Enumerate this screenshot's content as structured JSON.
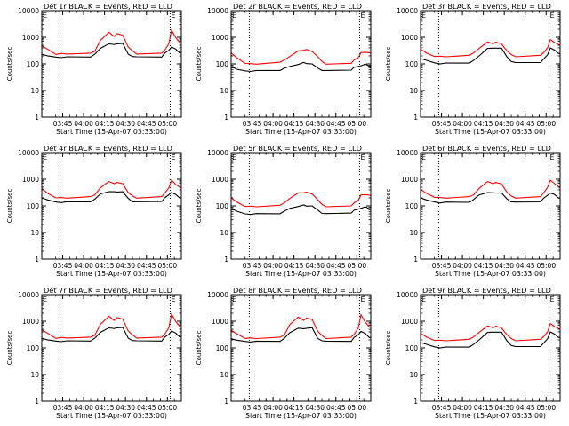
{
  "figure": {
    "xlabel": "Start Time (15-Apr-07 03:33:00)",
    "ylabel": "Counts/sec",
    "xticks": [
      "03:45",
      "04:00",
      "04:15",
      "04:30",
      "04:45",
      "05:00"
    ],
    "yticks": [
      "1",
      "10",
      "100",
      "1000",
      "10000"
    ],
    "corner_labels": {
      "left": "E",
      "right": "E"
    },
    "colors": {
      "events": "#000000",
      "lld": "#ff0000",
      "axes": "#000000",
      "background": "#ffffff"
    }
  },
  "chart_data": [
    {
      "type": "line",
      "title": "Det 1r BLACK = Events, RED = LLD",
      "xlabel": "Start Time (15-Apr-07 03:33:00)",
      "ylabel": "Counts/sec",
      "xlim": [
        0,
        100
      ],
      "ylim": [
        1,
        10000
      ],
      "yscale": "log",
      "day_night_markers": [
        13,
        92
      ],
      "x": [
        0,
        4,
        10,
        14,
        18,
        35,
        38,
        42,
        48,
        52,
        54,
        58,
        62,
        65,
        68,
        86,
        88,
        91,
        93,
        96,
        99,
        100
      ],
      "series": [
        {
          "name": "LLD",
          "color": "#ff0000",
          "values": [
            480,
            360,
            240,
            240,
            240,
            240,
            300,
            800,
            1500,
            1100,
            1300,
            1200,
            450,
            300,
            240,
            240,
            320,
            600,
            1800,
            1000,
            600,
            600
          ]
        },
        {
          "name": "Events",
          "color": "#000000",
          "values": [
            230,
            190,
            180,
            180,
            180,
            185,
            220,
            380,
            600,
            520,
            580,
            560,
            230,
            200,
            180,
            185,
            240,
            320,
            450,
            350,
            260,
            260
          ]
        }
      ]
    },
    {
      "type": "line",
      "title": "Det 2r BLACK = Events, RED = LLD",
      "xlabel": "Start Time (15-Apr-07 03:33:00)",
      "ylabel": "Counts/sec",
      "xlim": [
        0,
        100
      ],
      "ylim": [
        1,
        10000
      ],
      "yscale": "log",
      "day_night_markers": [
        13,
        92
      ],
      "x": [
        0,
        4,
        10,
        14,
        18,
        35,
        38,
        42,
        48,
        52,
        54,
        58,
        62,
        65,
        68,
        86,
        88,
        91,
        93,
        96,
        99,
        100
      ],
      "series": [
        {
          "name": "LLD",
          "color": "#ff0000",
          "values": [
            260,
            170,
            110,
            100,
            100,
            110,
            140,
            200,
            300,
            330,
            330,
            290,
            200,
            120,
            100,
            100,
            140,
            180,
            260,
            280,
            250,
            250
          ]
        },
        {
          "name": "Events",
          "color": "#000000",
          "values": [
            80,
            60,
            55,
            55,
            55,
            58,
            65,
            80,
            100,
            110,
            105,
            95,
            70,
            60,
            55,
            60,
            70,
            80,
            90,
            95,
            85,
            85
          ]
        }
      ]
    },
    {
      "type": "line",
      "title": "Det 3r BLACK = Events, RED = LLD",
      "xlabel": "Start Time (15-Apr-07 03:33:00)",
      "ylabel": "Counts/sec",
      "xlim": [
        0,
        100
      ],
      "ylim": [
        1,
        10000
      ],
      "yscale": "log",
      "day_night_markers": [
        13,
        92
      ],
      "x": [
        0,
        4,
        10,
        14,
        18,
        35,
        38,
        42,
        48,
        52,
        54,
        58,
        62,
        65,
        68,
        86,
        88,
        91,
        93,
        96,
        99,
        100
      ],
      "series": [
        {
          "name": "LLD",
          "color": "#ff0000",
          "values": [
            360,
            260,
            200,
            190,
            190,
            200,
            260,
            400,
            650,
            580,
            620,
            560,
            320,
            220,
            190,
            200,
            260,
            420,
            800,
            650,
            500,
            500
          ]
        },
        {
          "name": "Events",
          "color": "#000000",
          "values": [
            160,
            130,
            110,
            105,
            105,
            110,
            130,
            200,
            400,
            380,
            400,
            370,
            180,
            130,
            110,
            115,
            140,
            220,
            420,
            320,
            250,
            250
          ]
        }
      ]
    },
    {
      "type": "line",
      "title": "Det 4r BLACK = Events, RED = LLD",
      "xlabel": "Start Time (15-Apr-07 03:33:00)",
      "ylabel": "Counts/sec",
      "xlim": [
        0,
        100
      ],
      "ylim": [
        1,
        10000
      ],
      "yscale": "log",
      "day_night_markers": [
        13,
        92
      ],
      "x": [
        0,
        4,
        10,
        14,
        18,
        35,
        38,
        42,
        48,
        52,
        54,
        58,
        62,
        65,
        68,
        86,
        88,
        91,
        93,
        96,
        99,
        100
      ],
      "series": [
        {
          "name": "LLD",
          "color": "#ff0000",
          "values": [
            450,
            300,
            210,
            200,
            200,
            210,
            260,
            500,
            800,
            700,
            720,
            680,
            330,
            230,
            200,
            210,
            300,
            500,
            900,
            650,
            480,
            480
          ]
        },
        {
          "name": "Events",
          "color": "#000000",
          "values": [
            200,
            160,
            140,
            140,
            140,
            145,
            170,
            280,
            360,
            330,
            340,
            320,
            190,
            150,
            140,
            150,
            190,
            260,
            340,
            260,
            200,
            200
          ]
        }
      ]
    },
    {
      "type": "line",
      "title": "Det 5r BLACK = Events, RED = LLD",
      "xlabel": "Start Time (15-Apr-07 03:33:00)",
      "ylabel": "Counts/sec",
      "xlim": [
        0,
        100
      ],
      "ylim": [
        1,
        10000
      ],
      "yscale": "log",
      "day_night_markers": [
        13,
        92
      ],
      "x": [
        0,
        4,
        10,
        14,
        18,
        35,
        38,
        42,
        48,
        52,
        54,
        58,
        62,
        65,
        68,
        86,
        88,
        91,
        93,
        96,
        99,
        100
      ],
      "series": [
        {
          "name": "LLD",
          "color": "#ff0000",
          "values": [
            200,
            140,
            100,
            95,
            95,
            100,
            130,
            200,
            300,
            320,
            310,
            280,
            180,
            110,
            95,
            95,
            130,
            170,
            250,
            270,
            240,
            240
          ]
        },
        {
          "name": "Events",
          "color": "#000000",
          "values": [
            80,
            60,
            50,
            50,
            50,
            52,
            60,
            80,
            100,
            105,
            100,
            95,
            70,
            55,
            50,
            55,
            65,
            75,
            85,
            90,
            80,
            80
          ]
        }
      ]
    },
    {
      "type": "line",
      "title": "Det 6r BLACK = Events, RED = LLD",
      "xlabel": "Start Time (15-Apr-07 03:33:00)",
      "ylabel": "Counts/sec",
      "xlim": [
        0,
        100
      ],
      "ylim": [
        1,
        10000
      ],
      "yscale": "log",
      "day_night_markers": [
        13,
        92
      ],
      "x": [
        0,
        4,
        10,
        14,
        18,
        35,
        38,
        42,
        48,
        52,
        54,
        58,
        62,
        65,
        68,
        86,
        88,
        91,
        93,
        96,
        99,
        100
      ],
      "series": [
        {
          "name": "LLD",
          "color": "#ff0000",
          "values": [
            420,
            300,
            220,
            200,
            200,
            210,
            260,
            480,
            800,
            700,
            720,
            660,
            340,
            230,
            200,
            210,
            300,
            520,
            900,
            700,
            500,
            500
          ]
        },
        {
          "name": "Events",
          "color": "#000000",
          "values": [
            200,
            160,
            140,
            135,
            135,
            140,
            165,
            260,
            330,
            300,
            310,
            290,
            180,
            150,
            135,
            145,
            180,
            250,
            320,
            260,
            200,
            200
          ]
        }
      ]
    },
    {
      "type": "line",
      "title": "Det 7r BLACK = Events, RED = LLD",
      "xlabel": "Start Time (15-Apr-07 03:33:00)",
      "ylabel": "Counts/sec",
      "xlim": [
        0,
        100
      ],
      "ylim": [
        1,
        10000
      ],
      "yscale": "log",
      "day_night_markers": [
        13,
        92
      ],
      "x": [
        0,
        4,
        10,
        14,
        18,
        35,
        38,
        42,
        48,
        52,
        54,
        58,
        62,
        65,
        68,
        86,
        88,
        91,
        93,
        96,
        99,
        100
      ],
      "series": [
        {
          "name": "LLD",
          "color": "#ff0000",
          "values": [
            480,
            360,
            240,
            240,
            240,
            240,
            300,
            800,
            1500,
            1100,
            1300,
            1200,
            450,
            300,
            240,
            240,
            320,
            600,
            1800,
            1000,
            600,
            600
          ]
        },
        {
          "name": "Events",
          "color": "#000000",
          "values": [
            230,
            190,
            180,
            180,
            180,
            185,
            220,
            380,
            600,
            520,
            580,
            560,
            230,
            200,
            180,
            185,
            240,
            320,
            450,
            350,
            260,
            260
          ]
        }
      ]
    },
    {
      "type": "line",
      "title": "Det 8r BLACK = Events, RED = LLD",
      "xlabel": "Start Time (15-Apr-07 03:33:00)",
      "ylabel": "Counts/sec",
      "xlim": [
        0,
        100
      ],
      "ylim": [
        1,
        10000
      ],
      "yscale": "log",
      "day_night_markers": [
        13,
        92
      ],
      "x": [
        0,
        4,
        10,
        14,
        18,
        35,
        38,
        42,
        48,
        52,
        54,
        58,
        62,
        65,
        68,
        86,
        88,
        91,
        93,
        96,
        99,
        100
      ],
      "series": [
        {
          "name": "LLD",
          "color": "#ff0000",
          "values": [
            460,
            340,
            240,
            230,
            230,
            240,
            300,
            780,
            1400,
            1100,
            1250,
            1150,
            440,
            290,
            230,
            240,
            320,
            580,
            1700,
            950,
            580,
            580
          ]
        },
        {
          "name": "Events",
          "color": "#000000",
          "values": [
            220,
            185,
            175,
            175,
            175,
            180,
            215,
            370,
            580,
            510,
            560,
            540,
            225,
            195,
            175,
            180,
            235,
            310,
            440,
            340,
            250,
            250
          ]
        }
      ]
    },
    {
      "type": "line",
      "title": "Det 9r BLACK = Events, RED = LLD",
      "xlabel": "Start Time (15-Apr-07 03:33:00)",
      "ylabel": "Counts/sec",
      "xlim": [
        0,
        100
      ],
      "ylim": [
        1,
        10000
      ],
      "yscale": "log",
      "day_night_markers": [
        13,
        92
      ],
      "x": [
        0,
        4,
        10,
        14,
        18,
        35,
        38,
        42,
        48,
        52,
        54,
        58,
        62,
        65,
        68,
        86,
        88,
        91,
        93,
        96,
        99,
        100
      ],
      "series": [
        {
          "name": "LLD",
          "color": "#ff0000",
          "values": [
            360,
            260,
            200,
            190,
            190,
            200,
            260,
            400,
            650,
            580,
            620,
            560,
            320,
            220,
            190,
            200,
            260,
            420,
            800,
            650,
            500,
            500
          ]
        },
        {
          "name": "Events",
          "color": "#000000",
          "values": [
            160,
            130,
            110,
            105,
            105,
            110,
            130,
            200,
            400,
            380,
            400,
            370,
            180,
            130,
            110,
            115,
            140,
            220,
            420,
            320,
            250,
            250
          ]
        }
      ]
    }
  ]
}
